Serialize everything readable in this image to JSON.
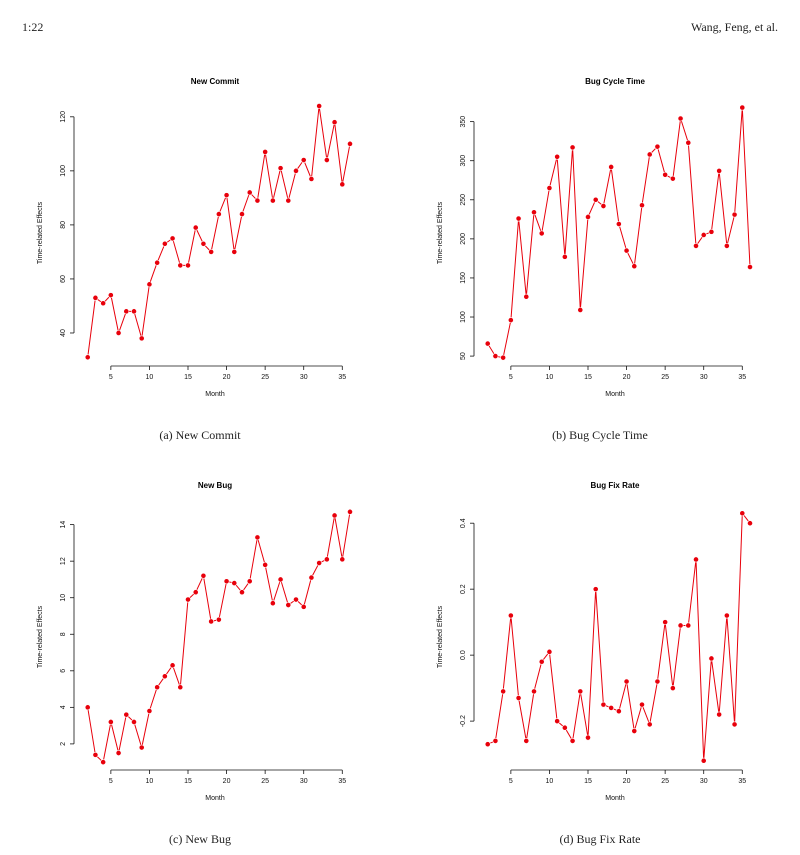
{
  "header": {
    "page_number": "1:22",
    "authors": "Wang, Feng, et al."
  },
  "series_color": "#e8000b",
  "chart_data": [
    {
      "type": "line",
      "title": "New Commit",
      "caption": "(a)  New Commit",
      "xlabel": "Month",
      "ylabel": "Time-related Effects",
      "xlim": [
        1,
        36
      ],
      "ylim": [
        30,
        124
      ],
      "xticks": [
        5,
        10,
        15,
        20,
        25,
        30,
        35
      ],
      "yticks": [
        40,
        60,
        80,
        100,
        120
      ],
      "ytick_labels": [
        "40",
        "60",
        "80",
        "100",
        "120"
      ],
      "x": [
        2,
        3,
        4,
        5,
        6,
        7,
        8,
        9,
        10,
        11,
        12,
        13,
        14,
        15,
        16,
        17,
        18,
        19,
        20,
        21,
        22,
        23,
        24,
        25,
        26,
        27,
        28,
        29,
        30,
        31,
        32,
        33,
        34,
        35,
        36
      ],
      "values": [
        31,
        53,
        51,
        54,
        40,
        48,
        48,
        38,
        58,
        66,
        73,
        75,
        65,
        65,
        79,
        73,
        70,
        84,
        91,
        70,
        84,
        92,
        89,
        107,
        89,
        101,
        89,
        100,
        104,
        97,
        124,
        104,
        118,
        95,
        110
      ]
    },
    {
      "type": "line",
      "title": "Bug Cycle Time",
      "caption": "(b)  Bug Cycle Time",
      "xlabel": "Month",
      "ylabel": "Time-related Effects",
      "xlim": [
        1,
        36
      ],
      "ylim": [
        45,
        370
      ],
      "xticks": [
        5,
        10,
        15,
        20,
        25,
        30,
        35
      ],
      "yticks": [
        50,
        100,
        150,
        200,
        250,
        300,
        350
      ],
      "ytick_labels": [
        "50",
        "100",
        "150",
        "200",
        "250",
        "300",
        "350"
      ],
      "x": [
        2,
        3,
        4,
        5,
        6,
        7,
        8,
        9,
        10,
        11,
        12,
        13,
        14,
        15,
        16,
        17,
        18,
        19,
        20,
        21,
        22,
        23,
        24,
        25,
        26,
        27,
        28,
        29,
        30,
        31,
        32,
        33,
        34,
        35,
        36
      ],
      "values": [
        66,
        50,
        48,
        96,
        226,
        126,
        234,
        207,
        265,
        305,
        177,
        317,
        109,
        228,
        250,
        242,
        292,
        219,
        185,
        165,
        243,
        308,
        318,
        282,
        277,
        354,
        323,
        191,
        205,
        209,
        287,
        191,
        231,
        368,
        164
      ]
    },
    {
      "type": "line",
      "title": "New Bug",
      "caption": "(c)  New Bug",
      "xlabel": "Month",
      "ylabel": "Time-related Effects",
      "xlim": [
        1,
        36
      ],
      "ylim": [
        0.9,
        14.8
      ],
      "xticks": [
        5,
        10,
        15,
        20,
        25,
        30,
        35
      ],
      "yticks": [
        2,
        4,
        6,
        8,
        10,
        12,
        14
      ],
      "ytick_labels": [
        "2",
        "4",
        "6",
        "8",
        "10",
        "12",
        "14"
      ],
      "x": [
        2,
        3,
        4,
        5,
        6,
        7,
        8,
        9,
        10,
        11,
        12,
        13,
        14,
        15,
        16,
        17,
        18,
        19,
        20,
        21,
        22,
        23,
        24,
        25,
        26,
        27,
        28,
        29,
        30,
        31,
        32,
        33,
        34,
        35,
        36
      ],
      "values": [
        4.0,
        1.4,
        1.0,
        3.2,
        1.5,
        3.6,
        3.2,
        1.8,
        3.8,
        5.1,
        5.7,
        6.3,
        5.1,
        9.9,
        10.3,
        11.2,
        8.7,
        8.8,
        10.9,
        10.8,
        10.3,
        10.9,
        13.3,
        11.8,
        9.7,
        11.0,
        9.6,
        9.9,
        9.5,
        11.1,
        11.9,
        12.1,
        14.5,
        12.1,
        14.7
      ]
    },
    {
      "type": "line",
      "title": "Bug Fix Rate",
      "caption": "(d)  Bug Fix Rate",
      "xlabel": "Month",
      "ylabel": "Time-related Effects",
      "xlim": [
        1,
        36
      ],
      "ylim": [
        -0.33,
        0.44
      ],
      "xticks": [
        5,
        10,
        15,
        20,
        25,
        30,
        35
      ],
      "yticks": [
        -0.2,
        0.0,
        0.2,
        0.4
      ],
      "ytick_labels": [
        "-0.2",
        "0.0",
        "0.2",
        "0.4"
      ],
      "x": [
        2,
        3,
        4,
        5,
        6,
        7,
        8,
        9,
        10,
        11,
        12,
        13,
        14,
        15,
        16,
        17,
        18,
        19,
        20,
        21,
        22,
        23,
        24,
        25,
        26,
        27,
        28,
        29,
        30,
        31,
        32,
        33,
        34,
        35,
        36
      ],
      "values": [
        -0.27,
        -0.26,
        -0.11,
        0.12,
        -0.13,
        -0.26,
        -0.11,
        -0.02,
        0.01,
        -0.2,
        -0.22,
        -0.26,
        -0.11,
        -0.25,
        0.2,
        -0.15,
        -0.16,
        -0.17,
        -0.08,
        -0.23,
        -0.15,
        -0.21,
        -0.08,
        0.1,
        -0.1,
        0.09,
        0.09,
        0.29,
        -0.32,
        -0.01,
        -0.18,
        0.12,
        -0.21,
        0.43,
        0.4
      ]
    }
  ]
}
